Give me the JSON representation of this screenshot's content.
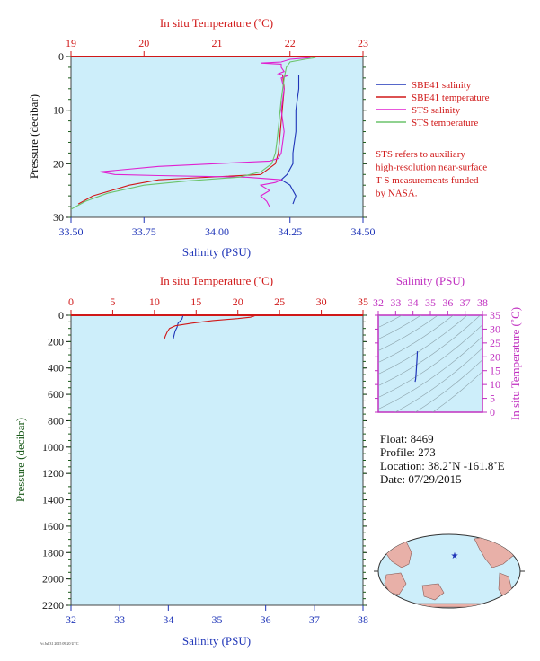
{
  "colors": {
    "plot_bg": "#cdeefa",
    "salinity": "#1f35b8",
    "temperature": "#d01818",
    "sts_salinity": "#e020d0",
    "sts_temperature": "#6cc46c",
    "pressure_axis": "#1a5a1a",
    "ts_axis": "#c030c0"
  },
  "chart_data": [
    {
      "type": "line",
      "title": "",
      "x_top_label": "In situ Temperature (˚C)",
      "x_top_ticks": [
        "19",
        "20",
        "21",
        "22",
        "23"
      ],
      "x_top_range": [
        19,
        23
      ],
      "x_bottom_label": "Salinity (PSU)",
      "x_bottom_ticks": [
        "33.50",
        "33.75",
        "34.00",
        "34.25",
        "34.50"
      ],
      "x_bottom_range": [
        33.5,
        34.5
      ],
      "y_label": "Pressure (decibar)",
      "y_ticks": [
        "0",
        "10",
        "20",
        "30"
      ],
      "y_range": [
        0,
        30
      ],
      "y_inverted": true,
      "grid": false,
      "legend": [
        {
          "name": "SBE41 salinity",
          "color_key": "salinity"
        },
        {
          "name": "SBE41 temperature",
          "color_key": "temperature"
        },
        {
          "name": "STS salinity",
          "color_key": "sts_salinity"
        },
        {
          "name": "STS temperature",
          "color_key": "sts_temperature"
        }
      ],
      "legend_placement": "right",
      "note_lines": [
        "STS refers to auxiliary",
        "high-resolution near-surface",
        "T-S measurements funded",
        "by NASA."
      ],
      "series": [
        {
          "name": "SBE41 salinity",
          "axis": "salinity",
          "color_key": "salinity",
          "points": [
            [
              34.28,
              3.5
            ],
            [
              34.28,
              6
            ],
            [
              34.27,
              10
            ],
            [
              34.27,
              14
            ],
            [
              34.26,
              18
            ],
            [
              34.26,
              20
            ],
            [
              34.24,
              22
            ],
            [
              34.22,
              23
            ],
            [
              34.25,
              24
            ],
            [
              34.27,
              26
            ],
            [
              34.26,
              27.5
            ]
          ]
        },
        {
          "name": "SBE41 temperature",
          "axis": "temperature",
          "color_key": "temperature",
          "points": [
            [
              21.9,
              3.5
            ],
            [
              21.92,
              6
            ],
            [
              21.88,
              12
            ],
            [
              21.84,
              18
            ],
            [
              21.8,
              20
            ],
            [
              21.6,
              22
            ],
            [
              20.2,
              23
            ],
            [
              19.8,
              24
            ],
            [
              19.3,
              26
            ],
            [
              19.1,
              27.5
            ]
          ]
        },
        {
          "name": "STS salinity",
          "axis": "salinity",
          "color_key": "sts_salinity",
          "points": [
            [
              34.32,
              0.2
            ],
            [
              34.25,
              0.5
            ],
            [
              34.22,
              1
            ],
            [
              34.15,
              1.2
            ],
            [
              34.22,
              1.4
            ],
            [
              34.22,
              2
            ],
            [
              34.23,
              2.8
            ],
            [
              34.21,
              3.2
            ],
            [
              34.24,
              3.6
            ],
            [
              34.22,
              4
            ],
            [
              34.23,
              6
            ],
            [
              34.22,
              10
            ],
            [
              34.23,
              14
            ],
            [
              34.22,
              18
            ],
            [
              34.21,
              19
            ],
            [
              34.18,
              19.5
            ],
            [
              33.8,
              20.5
            ],
            [
              33.6,
              21.5
            ],
            [
              33.65,
              22
            ],
            [
              33.8,
              22.2
            ],
            [
              34.1,
              22.5
            ],
            [
              34.22,
              23
            ],
            [
              34.2,
              23.5
            ],
            [
              34.15,
              24
            ],
            [
              34.18,
              25
            ],
            [
              34.15,
              26
            ],
            [
              34.17,
              27
            ],
            [
              34.18,
              28
            ]
          ]
        },
        {
          "name": "STS temperature",
          "axis": "temperature",
          "color_key": "sts_temperature",
          "points": [
            [
              22.35,
              0.2
            ],
            [
              22.2,
              0.5
            ],
            [
              22.0,
              1
            ],
            [
              21.95,
              2
            ],
            [
              21.92,
              4
            ],
            [
              21.88,
              8
            ],
            [
              21.85,
              12
            ],
            [
              21.82,
              16
            ],
            [
              21.8,
              18
            ],
            [
              21.75,
              20
            ],
            [
              21.6,
              21.5
            ],
            [
              21.3,
              22.5
            ],
            [
              20.6,
              23.2
            ],
            [
              20.0,
              24
            ],
            [
              19.5,
              25.5
            ],
            [
              19.2,
              27
            ],
            [
              19.0,
              28.5
            ]
          ]
        }
      ]
    },
    {
      "type": "line",
      "title": "",
      "x_top_label": "In situ Temperature (˚C)",
      "x_top_ticks": [
        "0",
        "5",
        "10",
        "15",
        "20",
        "25",
        "30",
        "35"
      ],
      "x_top_range": [
        0,
        35
      ],
      "x_bottom_label": "Salinity (PSU)",
      "x_bottom_ticks": [
        "32",
        "33",
        "34",
        "35",
        "36",
        "37",
        "38"
      ],
      "x_bottom_range": [
        32,
        38
      ],
      "y_label": "Pressure (decibar)",
      "y_ticks": [
        "0",
        "200",
        "400",
        "600",
        "800",
        "1000",
        "1200",
        "1400",
        "1600",
        "1800",
        "2000",
        "2200"
      ],
      "y_range": [
        0,
        2200
      ],
      "y_inverted": true,
      "grid": false,
      "series": [
        {
          "name": "SBE41 salinity",
          "axis": "salinity",
          "color_key": "salinity",
          "points": [
            [
              34.3,
              5
            ],
            [
              34.28,
              30
            ],
            [
              34.2,
              60
            ],
            [
              34.18,
              90
            ],
            [
              34.14,
              120
            ],
            [
              34.12,
              150
            ],
            [
              34.1,
              180
            ]
          ]
        },
        {
          "name": "SBE41 temperature",
          "axis": "temperature",
          "color_key": "temperature",
          "points": [
            [
              22,
              5
            ],
            [
              21.5,
              15
            ],
            [
              20,
              25
            ],
            [
              17,
              40
            ],
            [
              14.5,
              60
            ],
            [
              12.5,
              80
            ],
            [
              11.8,
              100
            ],
            [
              11.5,
              130
            ],
            [
              11.3,
              160
            ],
            [
              11.2,
              180
            ]
          ]
        }
      ]
    },
    {
      "type": "scatter",
      "title": "",
      "x_top_label": "Salinity (PSU)",
      "x_top_ticks": [
        "32",
        "33",
        "34",
        "35",
        "36",
        "37",
        "38"
      ],
      "x_top_range": [
        32,
        38
      ],
      "y_label": "In situ Temperature (˚C)",
      "y_ticks": [
        "0",
        "5",
        "10",
        "15",
        "20",
        "25",
        "30",
        "35"
      ],
      "y_range": [
        0,
        35
      ],
      "series": [
        {
          "name": "T-S",
          "color_key": "salinity",
          "points": [
            [
              34.25,
              22
            ],
            [
              34.24,
              20
            ],
            [
              34.22,
              18
            ],
            [
              34.2,
              16
            ],
            [
              34.18,
              14
            ],
            [
              34.15,
              12
            ],
            [
              34.12,
              11
            ]
          ]
        }
      ]
    }
  ],
  "float_info": {
    "float": "Float:  8469",
    "profile": "Profile:  273",
    "location": "Location:  38.2˚N  -161.8˚E",
    "date": "Date:  07/29/2015"
  },
  "footer": "Fri Jul 31 2015  09:20 UTC"
}
